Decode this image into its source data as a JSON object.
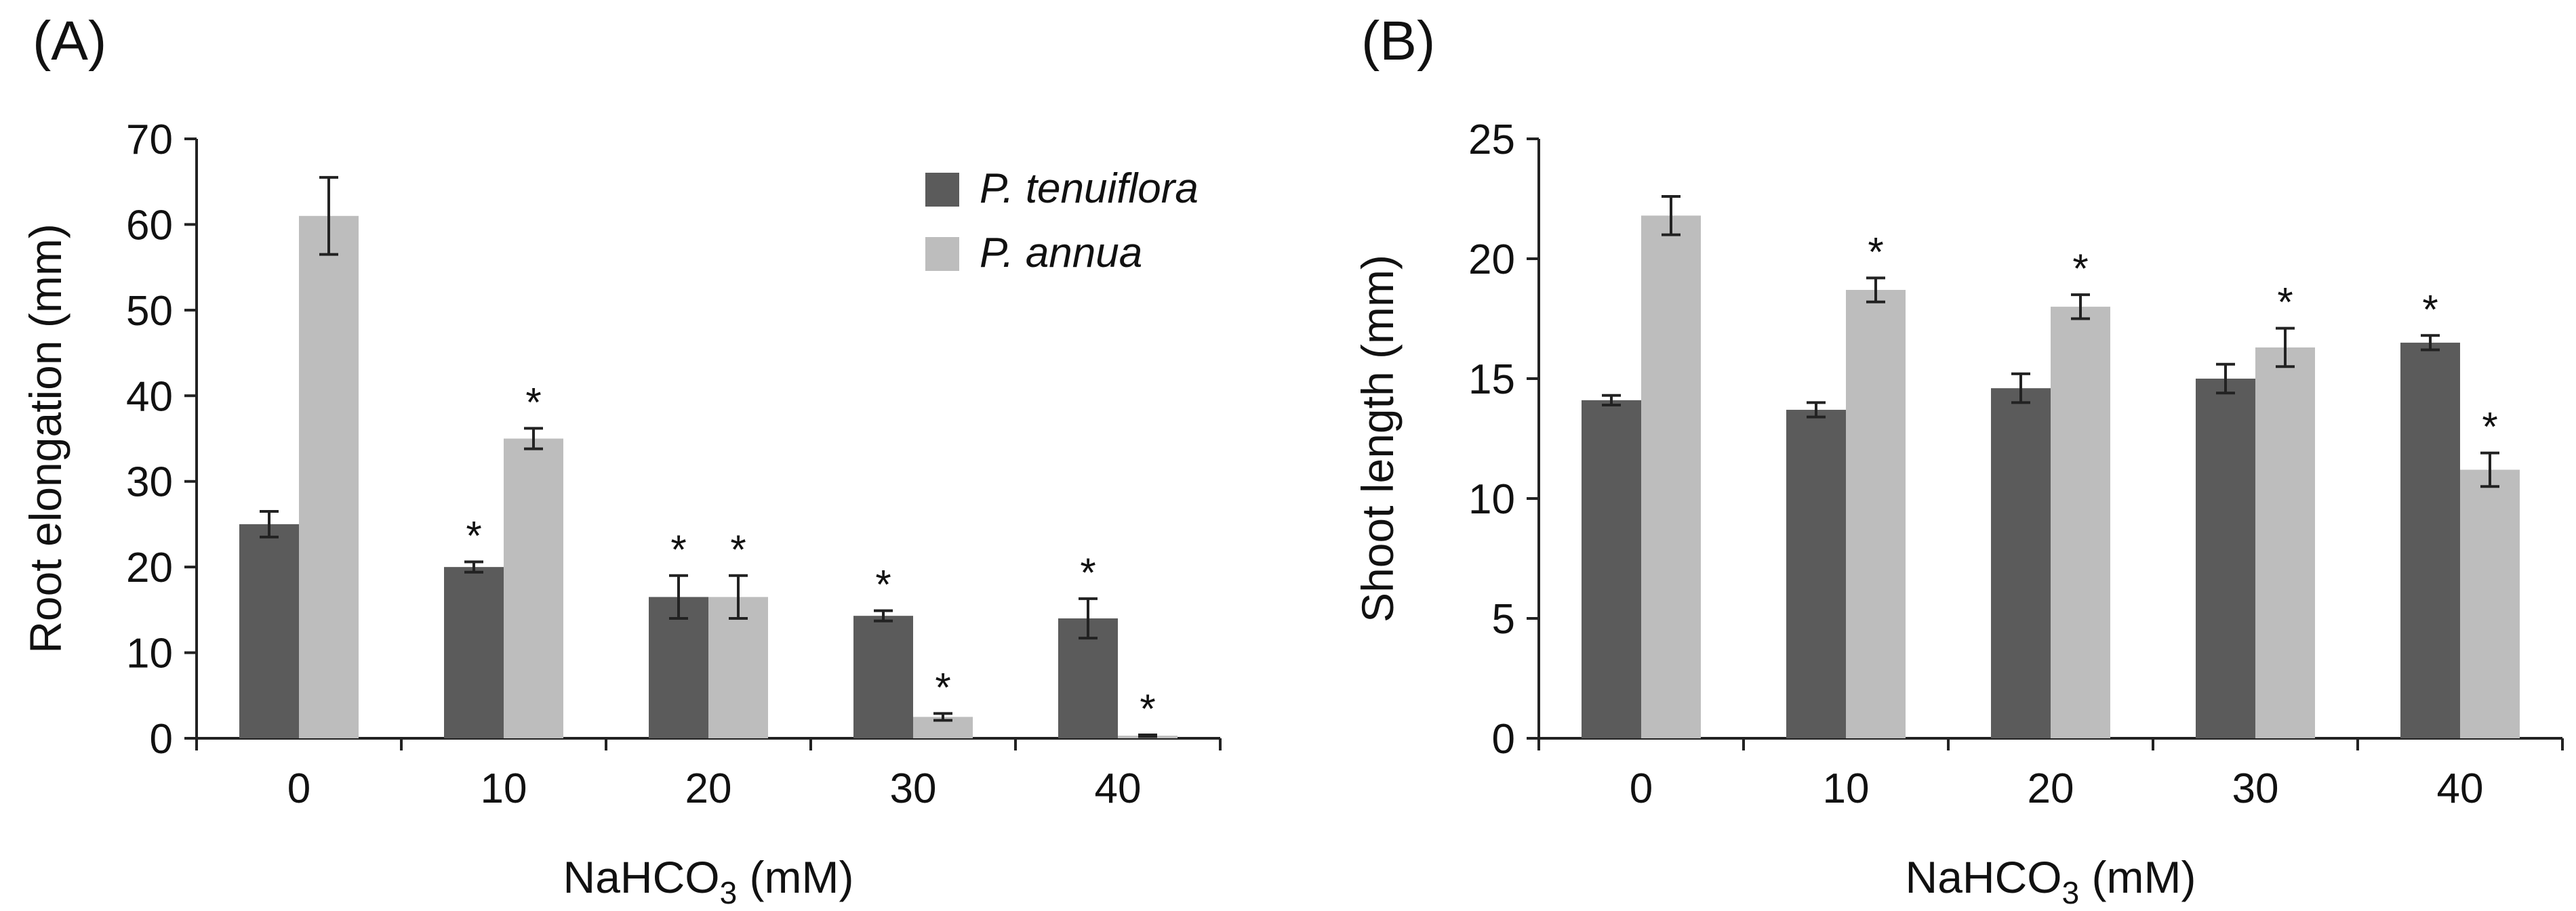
{
  "chart_data": [
    {
      "panel": "(A)",
      "type": "bar",
      "categories": [
        "0",
        "10",
        "20",
        "30",
        "40"
      ],
      "xlabel": "NaHCO",
      "xlabel_sub": "3",
      "xlabel_tail": " (mM)",
      "ylabel": "Root elongation (mm)",
      "ylim": [
        0,
        70
      ],
      "yticks": [
        0,
        10,
        20,
        30,
        40,
        50,
        60,
        70
      ],
      "legend": {
        "position": "top-right"
      },
      "series": [
        {
          "name": "P. tenuiflora",
          "color": "#5b5b5b",
          "values": [
            25,
            20,
            16.5,
            14.3,
            14
          ],
          "errors": [
            1.5,
            0.6,
            2.5,
            0.6,
            2.3
          ],
          "significant": [
            false,
            true,
            true,
            true,
            true
          ]
        },
        {
          "name": "P. annua",
          "color": "#bdbdbd",
          "values": [
            61,
            35,
            16.5,
            2.5,
            0.3
          ],
          "errors": [
            4.5,
            1.2,
            2.5,
            0.4,
            0.1
          ],
          "significant": [
            false,
            true,
            true,
            true,
            true
          ]
        }
      ],
      "annotation_symbol": "*"
    },
    {
      "panel": "(B)",
      "type": "bar",
      "categories": [
        "0",
        "10",
        "20",
        "30",
        "40"
      ],
      "xlabel": "NaHCO",
      "xlabel_sub": "3",
      "xlabel_tail": " (mM)",
      "ylabel": "Shoot length (mm)",
      "ylim": [
        0,
        25
      ],
      "yticks": [
        0,
        5,
        10,
        15,
        20,
        25
      ],
      "series": [
        {
          "name": "P. tenuiflora",
          "color": "#5b5b5b",
          "values": [
            14.1,
            13.7,
            14.6,
            15,
            16.5
          ],
          "errors": [
            0.2,
            0.3,
            0.6,
            0.6,
            0.3
          ],
          "significant": [
            false,
            false,
            false,
            false,
            true
          ]
        },
        {
          "name": "P. annua",
          "color": "#bdbdbd",
          "values": [
            21.8,
            18.7,
            18,
            16.3,
            11.2
          ],
          "errors": [
            0.8,
            0.5,
            0.5,
            0.8,
            0.7
          ],
          "significant": [
            false,
            true,
            true,
            true,
            true
          ]
        }
      ],
      "annotation_symbol": "*"
    }
  ]
}
